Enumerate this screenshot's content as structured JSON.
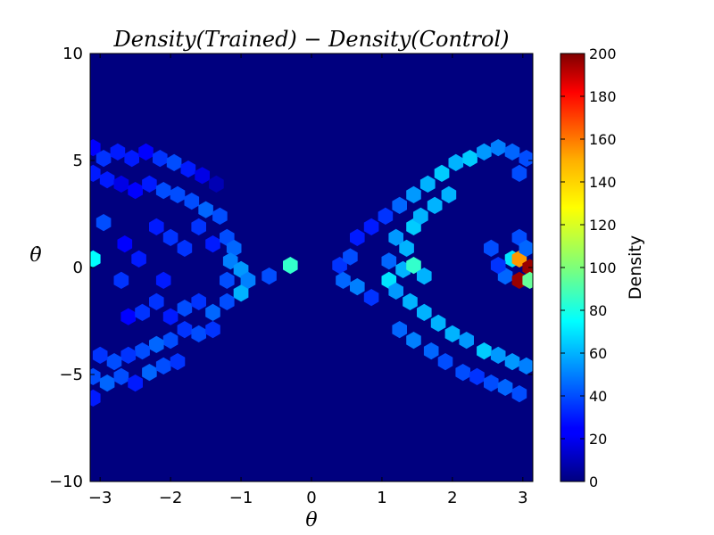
{
  "chart_data": {
    "type": "heatmap",
    "subtype": "hexbin",
    "title": "Density(Trained) − Density(Control)",
    "xlabel": "θ",
    "ylabel": "θ̇",
    "xlim": [
      -3.14159,
      3.14159
    ],
    "ylim": [
      -10,
      10
    ],
    "x_ticks": [
      -3,
      -2,
      -1,
      0,
      1,
      2,
      3
    ],
    "x_tick_labels": [
      "−3",
      "−2",
      "−1",
      "0",
      "1",
      "2",
      "3"
    ],
    "y_ticks": [
      -10,
      -5,
      0,
      5,
      10
    ],
    "y_tick_labels": [
      "−10",
      "−5",
      "0",
      "5",
      "10"
    ],
    "colorbar": {
      "label": "Density",
      "range": [
        0,
        200
      ],
      "ticks": [
        0,
        20,
        40,
        60,
        80,
        100,
        120,
        140,
        160,
        180,
        200
      ],
      "colormap": "jet"
    },
    "background_value": 0,
    "grid": false,
    "hex_cells": [
      [
        -3.1,
        5.6,
        25
      ],
      [
        -2.95,
        5.1,
        35
      ],
      [
        -2.75,
        5.4,
        30
      ],
      [
        -2.55,
        5.1,
        30
      ],
      [
        -2.35,
        5.4,
        25
      ],
      [
        -2.15,
        5.1,
        35
      ],
      [
        -1.95,
        4.9,
        40
      ],
      [
        -1.75,
        4.6,
        30
      ],
      [
        -1.55,
        4.3,
        20
      ],
      [
        -1.35,
        3.9,
        10
      ],
      [
        -3.1,
        4.4,
        30
      ],
      [
        -2.9,
        4.1,
        30
      ],
      [
        -2.7,
        3.9,
        20
      ],
      [
        -2.5,
        3.6,
        25
      ],
      [
        -2.3,
        3.9,
        30
      ],
      [
        -2.1,
        3.6,
        40
      ],
      [
        -1.9,
        3.4,
        40
      ],
      [
        -1.7,
        3.1,
        40
      ],
      [
        -1.5,
        2.7,
        45
      ],
      [
        -1.3,
        2.4,
        40
      ],
      [
        -2.95,
        2.1,
        40
      ],
      [
        -2.65,
        1.1,
        25
      ],
      [
        -2.45,
        0.4,
        30
      ],
      [
        -2.2,
        1.9,
        30
      ],
      [
        -2.0,
        1.4,
        35
      ],
      [
        -1.8,
        0.9,
        35
      ],
      [
        -1.6,
        1.9,
        35
      ],
      [
        -1.4,
        1.1,
        30
      ],
      [
        -1.2,
        1.4,
        40
      ],
      [
        -1.1,
        0.9,
        45
      ],
      [
        -1.15,
        0.3,
        50
      ],
      [
        -1.0,
        -0.1,
        55
      ],
      [
        -0.9,
        -0.6,
        50
      ],
      [
        -1.0,
        -1.2,
        60
      ],
      [
        -1.2,
        -0.6,
        40
      ],
      [
        -0.6,
        -0.4,
        40
      ],
      [
        -0.3,
        0.1,
        85
      ],
      [
        -3.1,
        0.4,
        75
      ],
      [
        -2.7,
        -0.6,
        35
      ],
      [
        -2.1,
        -0.6,
        30
      ],
      [
        -2.6,
        -2.3,
        25
      ],
      [
        -2.4,
        -2.1,
        35
      ],
      [
        -2.2,
        -1.6,
        35
      ],
      [
        -2.0,
        -2.3,
        30
      ],
      [
        -1.8,
        -1.9,
        40
      ],
      [
        -1.6,
        -1.6,
        35
      ],
      [
        -1.4,
        -2.1,
        45
      ],
      [
        -1.2,
        -1.6,
        40
      ],
      [
        -1.8,
        -2.9,
        35
      ],
      [
        -1.6,
        -3.1,
        40
      ],
      [
        -1.4,
        -2.9,
        35
      ],
      [
        -2.0,
        -3.4,
        40
      ],
      [
        -2.2,
        -3.6,
        45
      ],
      [
        -2.4,
        -3.9,
        40
      ],
      [
        -2.6,
        -4.1,
        35
      ],
      [
        -2.8,
        -4.4,
        40
      ],
      [
        -3.0,
        -4.1,
        35
      ],
      [
        -3.1,
        -5.1,
        40
      ],
      [
        -2.9,
        -5.4,
        45
      ],
      [
        -2.7,
        -5.1,
        40
      ],
      [
        -2.5,
        -5.4,
        30
      ],
      [
        -2.3,
        -4.9,
        45
      ],
      [
        -2.1,
        -4.6,
        40
      ],
      [
        -1.9,
        -4.4,
        35
      ],
      [
        -3.1,
        -6.1,
        30
      ],
      [
        0.4,
        0.1,
        35
      ],
      [
        0.55,
        0.5,
        40
      ],
      [
        0.45,
        -0.6,
        45
      ],
      [
        0.65,
        -0.9,
        50
      ],
      [
        0.85,
        -1.4,
        35
      ],
      [
        0.65,
        1.4,
        30
      ],
      [
        0.85,
        1.9,
        30
      ],
      [
        1.05,
        2.4,
        35
      ],
      [
        1.25,
        2.9,
        45
      ],
      [
        1.45,
        3.4,
        55
      ],
      [
        1.65,
        3.9,
        60
      ],
      [
        1.85,
        4.4,
        65
      ],
      [
        2.05,
        4.9,
        60
      ],
      [
        2.25,
        5.1,
        65
      ],
      [
        2.45,
        5.4,
        55
      ],
      [
        2.65,
        5.6,
        50
      ],
      [
        2.85,
        5.4,
        45
      ],
      [
        3.05,
        5.1,
        40
      ],
      [
        2.95,
        4.4,
        40
      ],
      [
        1.2,
        1.4,
        55
      ],
      [
        1.35,
        0.9,
        60
      ],
      [
        1.45,
        1.9,
        65
      ],
      [
        1.55,
        2.4,
        60
      ],
      [
        1.75,
        2.9,
        60
      ],
      [
        1.95,
        3.4,
        60
      ],
      [
        1.1,
        0.3,
        45
      ],
      [
        1.3,
        -0.1,
        60
      ],
      [
        1.45,
        0.1,
        85
      ],
      [
        1.6,
        -0.4,
        60
      ],
      [
        1.1,
        -0.6,
        70
      ],
      [
        1.2,
        -1.1,
        55
      ],
      [
        1.4,
        -1.6,
        60
      ],
      [
        1.6,
        -2.1,
        60
      ],
      [
        1.8,
        -2.6,
        60
      ],
      [
        2.0,
        -3.1,
        60
      ],
      [
        2.2,
        -3.4,
        55
      ],
      [
        2.45,
        -3.9,
        65
      ],
      [
        2.65,
        -4.1,
        55
      ],
      [
        2.85,
        -4.4,
        55
      ],
      [
        3.05,
        -4.6,
        50
      ],
      [
        1.25,
        -2.9,
        45
      ],
      [
        1.45,
        -3.4,
        50
      ],
      [
        1.7,
        -3.9,
        45
      ],
      [
        1.9,
        -4.4,
        40
      ],
      [
        2.15,
        -4.9,
        40
      ],
      [
        2.35,
        -5.1,
        35
      ],
      [
        2.55,
        -5.4,
        40
      ],
      [
        2.75,
        -5.6,
        45
      ],
      [
        2.95,
        -5.9,
        40
      ],
      [
        2.55,
        0.9,
        40
      ],
      [
        2.75,
        -0.4,
        45
      ],
      [
        2.95,
        1.4,
        40
      ],
      [
        2.85,
        0.4,
        70
      ],
      [
        2.95,
        0.4,
        145
      ],
      [
        3.1,
        0.0,
        195
      ],
      [
        2.95,
        -0.6,
        195
      ],
      [
        3.1,
        -0.6,
        95
      ],
      [
        3.05,
        0.9,
        45
      ],
      [
        2.65,
        0.1,
        35
      ]
    ]
  }
}
